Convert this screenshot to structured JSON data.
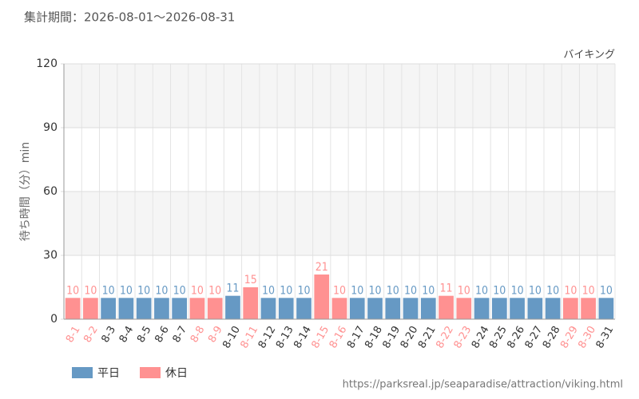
{
  "chart_data": {
    "type": "bar",
    "title": "集計期間：2026-08-01～2026-08-31",
    "annotation": "バイキング",
    "y_label": "待ち時間（分）min",
    "source": "https://parksreal.jp/seaparadise/attraction/viking.html",
    "categories": [
      "8-1",
      "8-2",
      "8-3",
      "8-4",
      "8-5",
      "8-6",
      "8-7",
      "8-8",
      "8-9",
      "8-10",
      "8-11",
      "8-12",
      "8-13",
      "8-14",
      "8-15",
      "8-16",
      "8-17",
      "8-18",
      "8-19",
      "8-20",
      "8-21",
      "8-22",
      "8-23",
      "8-24",
      "8-25",
      "8-26",
      "8-27",
      "8-28",
      "8-29",
      "8-30",
      "8-31"
    ],
    "series": [
      {
        "name": "平日",
        "color": "#6699c4",
        "values": [
          null,
          null,
          10,
          10,
          10,
          10,
          10,
          null,
          null,
          11,
          null,
          10,
          10,
          10,
          null,
          null,
          10,
          10,
          10,
          10,
          10,
          null,
          null,
          10,
          10,
          10,
          10,
          10,
          null,
          null,
          10
        ]
      },
      {
        "name": "休日",
        "color": "#ff9191",
        "values": [
          10,
          10,
          null,
          null,
          null,
          null,
          null,
          10,
          10,
          null,
          15,
          null,
          null,
          null,
          21,
          10,
          null,
          null,
          null,
          null,
          null,
          11,
          10,
          null,
          null,
          null,
          null,
          null,
          10,
          10,
          null
        ]
      }
    ],
    "ylim": [
      0,
      120
    ],
    "yticks": [
      0,
      30,
      60,
      90,
      120
    ],
    "grid": true
  }
}
